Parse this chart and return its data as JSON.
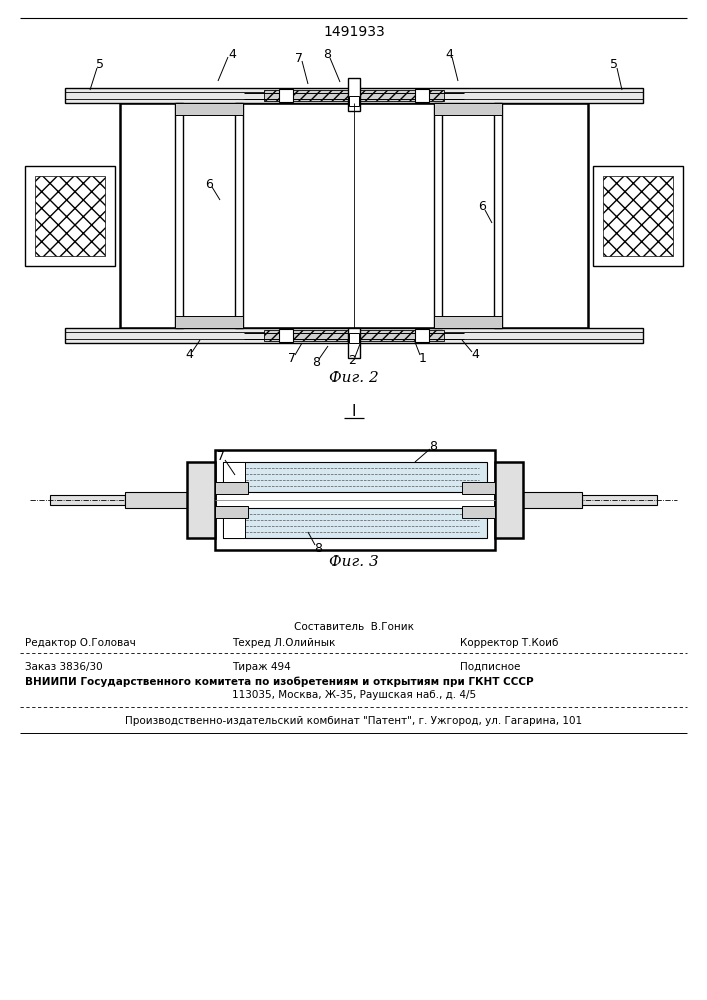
{
  "title": "1491933",
  "fig2_label": "Фиг. 2",
  "fig3_label": "Фиг. 3",
  "bg_color": "#ffffff",
  "line_color": "#000000"
}
